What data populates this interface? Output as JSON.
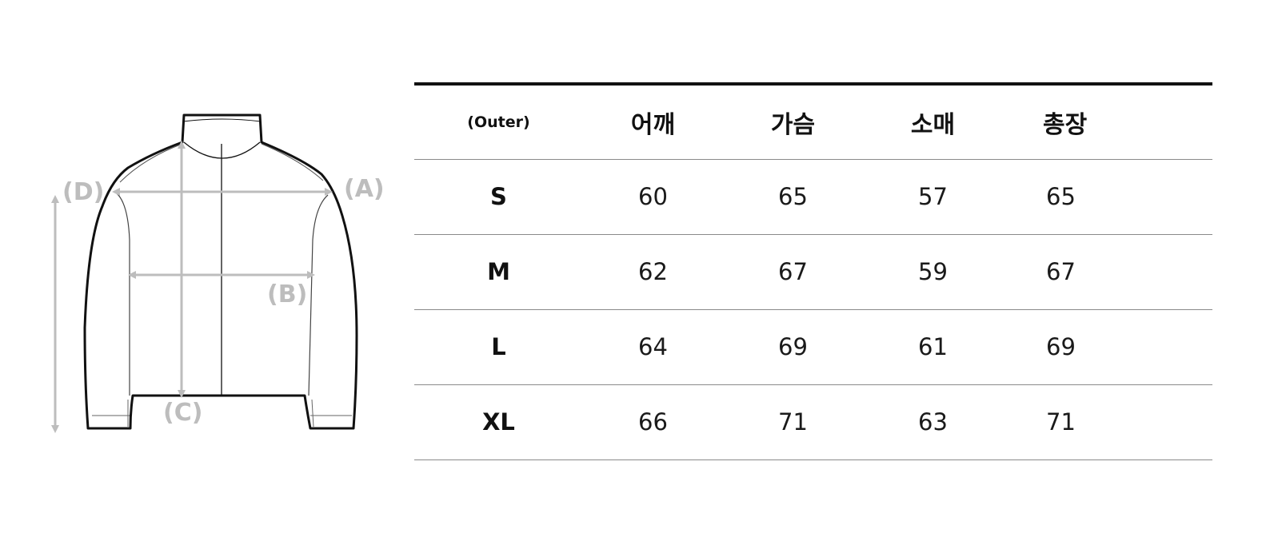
{
  "diagram": {
    "garment": "jacket",
    "labels": {
      "a": "(A)",
      "b": "(B)",
      "c": "(C)",
      "d": "(D)"
    },
    "colors": {
      "outline": "#111111",
      "measure": "#bdbdbd"
    }
  },
  "table": {
    "corner": "(Outer)",
    "headers": [
      "어깨",
      "가슴",
      "소매",
      "총장"
    ],
    "rows": [
      {
        "size": "S",
        "values": [
          "60",
          "65",
          "57",
          "65"
        ]
      },
      {
        "size": "M",
        "values": [
          "62",
          "67",
          "59",
          "67"
        ]
      },
      {
        "size": "L",
        "values": [
          "64",
          "69",
          "61",
          "69"
        ]
      },
      {
        "size": "XL",
        "values": [
          "66",
          "71",
          "63",
          "71"
        ]
      }
    ]
  }
}
